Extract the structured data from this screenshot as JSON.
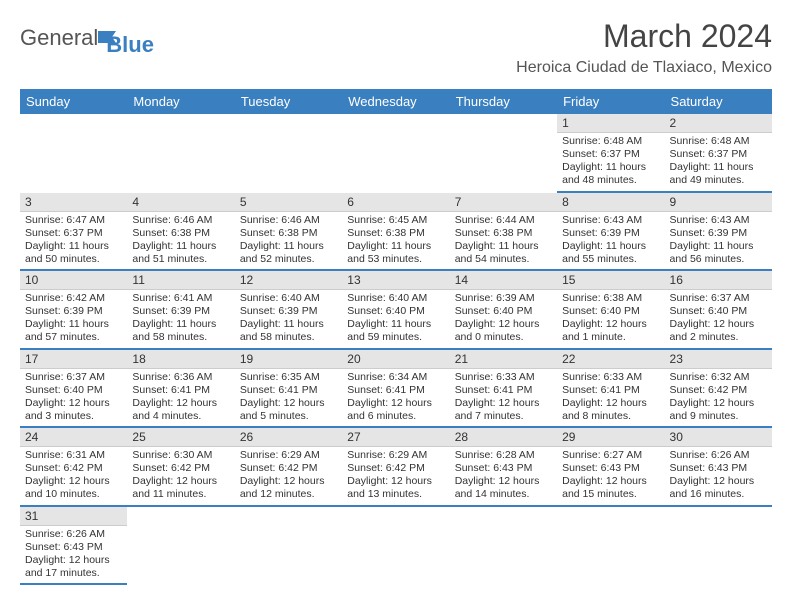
{
  "logo": {
    "general": "General",
    "blue": "Blue"
  },
  "title": {
    "month_year": "March 2024",
    "location": "Heroica Ciudad de Tlaxiaco, Mexico"
  },
  "colors": {
    "header_bg": "#3a7fbf",
    "day_num_bg": "#e5e5e5",
    "cell_border": "#3a7fbf",
    "text": "#333333"
  },
  "weekdays": [
    "Sunday",
    "Monday",
    "Tuesday",
    "Wednesday",
    "Thursday",
    "Friday",
    "Saturday"
  ],
  "grid": [
    [
      null,
      null,
      null,
      null,
      null,
      {
        "n": "1",
        "sr": "6:48 AM",
        "ss": "6:37 PM",
        "dl": "11 hours and 48 minutes."
      },
      {
        "n": "2",
        "sr": "6:48 AM",
        "ss": "6:37 PM",
        "dl": "11 hours and 49 minutes."
      }
    ],
    [
      {
        "n": "3",
        "sr": "6:47 AM",
        "ss": "6:37 PM",
        "dl": "11 hours and 50 minutes."
      },
      {
        "n": "4",
        "sr": "6:46 AM",
        "ss": "6:38 PM",
        "dl": "11 hours and 51 minutes."
      },
      {
        "n": "5",
        "sr": "6:46 AM",
        "ss": "6:38 PM",
        "dl": "11 hours and 52 minutes."
      },
      {
        "n": "6",
        "sr": "6:45 AM",
        "ss": "6:38 PM",
        "dl": "11 hours and 53 minutes."
      },
      {
        "n": "7",
        "sr": "6:44 AM",
        "ss": "6:38 PM",
        "dl": "11 hours and 54 minutes."
      },
      {
        "n": "8",
        "sr": "6:43 AM",
        "ss": "6:39 PM",
        "dl": "11 hours and 55 minutes."
      },
      {
        "n": "9",
        "sr": "6:43 AM",
        "ss": "6:39 PM",
        "dl": "11 hours and 56 minutes."
      }
    ],
    [
      {
        "n": "10",
        "sr": "6:42 AM",
        "ss": "6:39 PM",
        "dl": "11 hours and 57 minutes."
      },
      {
        "n": "11",
        "sr": "6:41 AM",
        "ss": "6:39 PM",
        "dl": "11 hours and 58 minutes."
      },
      {
        "n": "12",
        "sr": "6:40 AM",
        "ss": "6:39 PM",
        "dl": "11 hours and 58 minutes."
      },
      {
        "n": "13",
        "sr": "6:40 AM",
        "ss": "6:40 PM",
        "dl": "11 hours and 59 minutes."
      },
      {
        "n": "14",
        "sr": "6:39 AM",
        "ss": "6:40 PM",
        "dl": "12 hours and 0 minutes."
      },
      {
        "n": "15",
        "sr": "6:38 AM",
        "ss": "6:40 PM",
        "dl": "12 hours and 1 minute."
      },
      {
        "n": "16",
        "sr": "6:37 AM",
        "ss": "6:40 PM",
        "dl": "12 hours and 2 minutes."
      }
    ],
    [
      {
        "n": "17",
        "sr": "6:37 AM",
        "ss": "6:40 PM",
        "dl": "12 hours and 3 minutes."
      },
      {
        "n": "18",
        "sr": "6:36 AM",
        "ss": "6:41 PM",
        "dl": "12 hours and 4 minutes."
      },
      {
        "n": "19",
        "sr": "6:35 AM",
        "ss": "6:41 PM",
        "dl": "12 hours and 5 minutes."
      },
      {
        "n": "20",
        "sr": "6:34 AM",
        "ss": "6:41 PM",
        "dl": "12 hours and 6 minutes."
      },
      {
        "n": "21",
        "sr": "6:33 AM",
        "ss": "6:41 PM",
        "dl": "12 hours and 7 minutes."
      },
      {
        "n": "22",
        "sr": "6:33 AM",
        "ss": "6:41 PM",
        "dl": "12 hours and 8 minutes."
      },
      {
        "n": "23",
        "sr": "6:32 AM",
        "ss": "6:42 PM",
        "dl": "12 hours and 9 minutes."
      }
    ],
    [
      {
        "n": "24",
        "sr": "6:31 AM",
        "ss": "6:42 PM",
        "dl": "12 hours and 10 minutes."
      },
      {
        "n": "25",
        "sr": "6:30 AM",
        "ss": "6:42 PM",
        "dl": "12 hours and 11 minutes."
      },
      {
        "n": "26",
        "sr": "6:29 AM",
        "ss": "6:42 PM",
        "dl": "12 hours and 12 minutes."
      },
      {
        "n": "27",
        "sr": "6:29 AM",
        "ss": "6:42 PM",
        "dl": "12 hours and 13 minutes."
      },
      {
        "n": "28",
        "sr": "6:28 AM",
        "ss": "6:43 PM",
        "dl": "12 hours and 14 minutes."
      },
      {
        "n": "29",
        "sr": "6:27 AM",
        "ss": "6:43 PM",
        "dl": "12 hours and 15 minutes."
      },
      {
        "n": "30",
        "sr": "6:26 AM",
        "ss": "6:43 PM",
        "dl": "12 hours and 16 minutes."
      }
    ],
    [
      {
        "n": "31",
        "sr": "6:26 AM",
        "ss": "6:43 PM",
        "dl": "12 hours and 17 minutes."
      },
      null,
      null,
      null,
      null,
      null,
      null
    ]
  ],
  "labels": {
    "sunrise": "Sunrise:",
    "sunset": "Sunset:",
    "daylight": "Daylight:"
  }
}
